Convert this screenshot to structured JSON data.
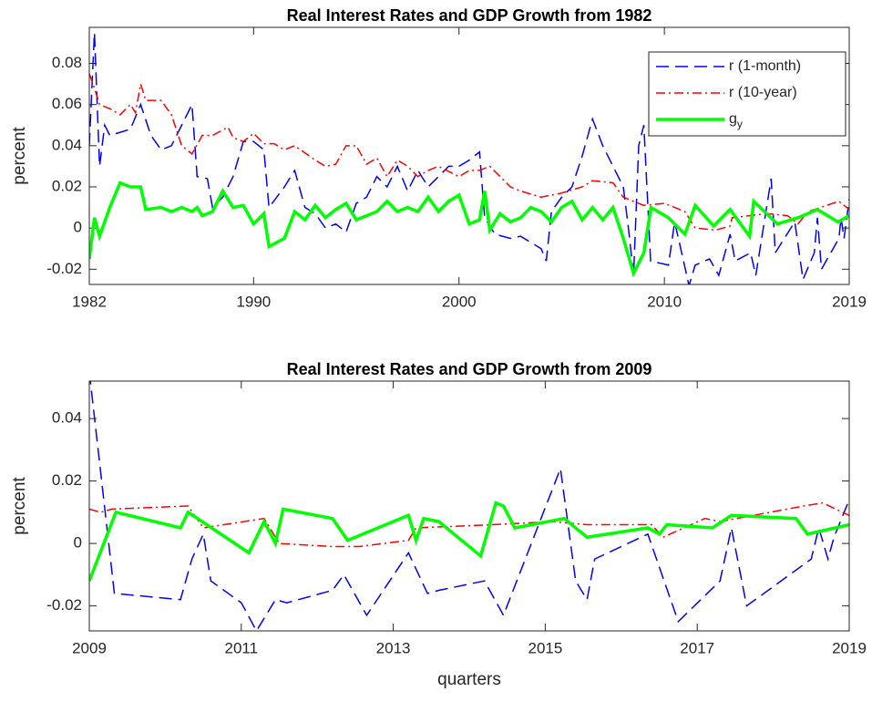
{
  "chart_data": [
    {
      "type": "line",
      "title": "Real Interest Rates and GDP Growth from 1982",
      "ylabel": "percent",
      "xlim": [
        1982,
        2019
      ],
      "xticks": [
        1982,
        1990,
        2000,
        2010,
        2019
      ],
      "ylim": [
        -0.0274,
        0.0975
      ],
      "yticks": [
        -0.02,
        0,
        0.02,
        0.04,
        0.06,
        0.08
      ],
      "legend": "northeast",
      "series": [
        {
          "name": "r (1-month)",
          "color": "#0000ff",
          "dash": "dashed",
          "x": [
            1982,
            1982.25,
            1982.5,
            1982.75,
            1983,
            1984,
            1984.5,
            1985,
            1985.5,
            1986,
            1986.5,
            1987,
            1987.25,
            1987.75,
            1988,
            1988.5,
            1989,
            1989.5,
            1990,
            1990.5,
            1990.75,
            1991.5,
            1992,
            1992.5,
            1993,
            1993.5,
            1994,
            1994.5,
            1995,
            1995.5,
            1996,
            1996.5,
            1997,
            1997.5,
            1998,
            1998.5,
            1999,
            1999.5,
            2000,
            2000.5,
            2001,
            2001.25,
            2001.75,
            2002.5,
            2003,
            2003.5,
            2004,
            2004.25,
            2004.5,
            2005,
            2005.5,
            2006,
            2006.5,
            2007,
            2007.5,
            2008,
            2008.25,
            2008.5,
            2008.75,
            2009,
            2009.33,
            2010.2,
            2010.5,
            2011,
            2011.2,
            2011.5,
            2012.2,
            2012.65,
            2013.2,
            2013.45,
            2014.2,
            2014.45,
            2015.2,
            2015.4,
            2016.35,
            2016.75,
            2017.3,
            2017.45,
            2017.65,
            2018.5,
            2018.6,
            2018.75,
            2019
          ],
          "values": [
            0.04,
            0.095,
            0.03,
            0.05,
            0.045,
            0.048,
            0.06,
            0.045,
            0.038,
            0.04,
            0.05,
            0.06,
            0.025,
            0.024,
            0.01,
            0.015,
            0.025,
            0.042,
            0.042,
            0.038,
            0.01,
            0.02,
            0.028,
            0.01,
            0.007,
            0,
            0.002,
            -0.002,
            0.012,
            0.015,
            0.025,
            0.02,
            0.03,
            0.018,
            0.028,
            0.02,
            0.025,
            0.03,
            0.03,
            0.033,
            0.037,
            0.005,
            -0.003,
            -0.005,
            -0.004,
            -0.007,
            -0.01,
            -0.016,
            0.008,
            0.015,
            0.02,
            0.035,
            0.053,
            0.04,
            0.03,
            0.02,
            0,
            -0.023,
            0.04,
            0.05,
            -0.016,
            -0.018,
            0.003,
            -0.019,
            -0.028,
            -0.018,
            -0.015,
            -0.023,
            -0.003,
            -0.016,
            -0.012,
            -0.023,
            0.024,
            -0.012,
            0.003,
            -0.025,
            -0.012,
            0.005,
            -0.02,
            -0.005,
            0.005,
            -0.005,
            0.014
          ]
        },
        {
          "name": "r (10-year)",
          "color": "#ff0000",
          "dash": "dashdot",
          "x": [
            1982,
            1982.25,
            1982.5,
            1983,
            1983.5,
            1984,
            1984.25,
            1984.5,
            1984.75,
            1985.5,
            1986,
            1986.5,
            1987,
            1987.5,
            1988,
            1988.75,
            1989,
            1989.5,
            1990,
            1990.5,
            1991,
            1991.5,
            1992,
            1993,
            1993.5,
            1994,
            1994.5,
            1995,
            1995.5,
            1996,
            1996.5,
            1997,
            1997.5,
            1998,
            1998.5,
            1999,
            2000,
            2000.5,
            2001,
            2001.5,
            2002,
            2002.5,
            2003,
            2004,
            2005,
            2006,
            2006.5,
            2007.5,
            2008,
            2009,
            2010,
            2011,
            2011.5,
            2012.5,
            2013.2,
            2013.3,
            2015,
            2016,
            2016.5,
            2017,
            2018.5,
            2019
          ],
          "values": [
            0.075,
            0.068,
            0.06,
            0.058,
            0.055,
            0.06,
            0.056,
            0.07,
            0.062,
            0.062,
            0.055,
            0.04,
            0.036,
            0.045,
            0.045,
            0.049,
            0.044,
            0.042,
            0.046,
            0.041,
            0.041,
            0.038,
            0.04,
            0.033,
            0.03,
            0.031,
            0.04,
            0.04,
            0.031,
            0.034,
            0.025,
            0.033,
            0.03,
            0.025,
            0.028,
            0.03,
            0.025,
            0.028,
            0.028,
            0.03,
            0.025,
            0.02,
            0.018,
            0.015,
            0.017,
            0.02,
            0.023,
            0.022,
            0.015,
            0.011,
            0.012,
            0.008,
            0,
            -0.001,
            0.001,
            0.005,
            0.007,
            0.006,
            0.002,
            0.008,
            0.013,
            0.009
          ]
        },
        {
          "name": "g_y",
          "color": "#00ff00",
          "dash": "solid",
          "x": [
            1982,
            1982.25,
            1982.5,
            1983,
            1983.5,
            1984,
            1984.5,
            1984.75,
            1985.5,
            1986,
            1986.5,
            1987,
            1987.25,
            1987.5,
            1988,
            1988.5,
            1989,
            1989.5,
            1990,
            1990.5,
            1990.75,
            1991.5,
            1992,
            1992.5,
            1993,
            1993.5,
            1994,
            1994.5,
            1995,
            1995.5,
            1996,
            1996.5,
            1997,
            1997.5,
            1998,
            1998.5,
            1999,
            1999.5,
            2000,
            2000.5,
            2001,
            2001.25,
            2001.5,
            2002,
            2002.5,
            2003,
            2003.5,
            2004,
            2004.5,
            2005,
            2005.5,
            2006,
            2006.5,
            2007,
            2007.5,
            2008,
            2008.5,
            2009,
            2009.35,
            2010.2,
            2011,
            2011.5,
            2012.4,
            2013.2,
            2014.15,
            2014.35,
            2015.5,
            2016.5,
            2017.45,
            2018.45,
            2019
          ],
          "values": [
            -0.015,
            0.005,
            -0.004,
            0.01,
            0.022,
            0.02,
            0.02,
            0.009,
            0.01,
            0.008,
            0.01,
            0.008,
            0.01,
            0.006,
            0.008,
            0.018,
            0.01,
            0.011,
            0.002,
            0.007,
            -0.009,
            -0.005,
            0.008,
            0.004,
            0.011,
            0.005,
            0.009,
            0.012,
            0.004,
            0.006,
            0.008,
            0.013,
            0.008,
            0.01,
            0.008,
            0.015,
            0.008,
            0.013,
            0.016,
            0.002,
            0.004,
            0.018,
            -0.001,
            0.007,
            0.003,
            0.005,
            0.01,
            0.008,
            0.003,
            0.01,
            0.013,
            0.004,
            0.01,
            0.004,
            0.01,
            -0.005,
            -0.022,
            -0.012,
            0.01,
            0.005,
            -0.003,
            0.011,
            0.001,
            0.009,
            -0.004,
            0.013,
            0.002,
            0.005,
            0.009,
            0.003,
            0.006
          ]
        }
      ]
    },
    {
      "type": "line",
      "title": "Real Interest Rates and GDP Growth from 2009",
      "ylabel": "percent",
      "xlabel": "quarters",
      "xlim": [
        2009,
        2019
      ],
      "xticks": [
        2009,
        2011,
        2013,
        2015,
        2017,
        2019
      ],
      "ylim": [
        -0.028,
        0.052
      ],
      "yticks": [
        -0.02,
        0,
        0.02,
        0.04
      ],
      "series": [
        {
          "name": "r (1-month)",
          "color": "#0000ff",
          "dash": "dashed",
          "x": [
            2009,
            2009.33,
            2010.2,
            2010.35,
            2010.5,
            2010.6,
            2011,
            2011.2,
            2011.45,
            2011.6,
            2012.2,
            2012.35,
            2012.65,
            2013.2,
            2013.45,
            2013.6,
            2014.2,
            2014.45,
            2015.2,
            2015.4,
            2015.55,
            2015.65,
            2016.35,
            2016.75,
            2017.3,
            2017.45,
            2017.65,
            2018.5,
            2018.6,
            2018.72,
            2018.8,
            2019
          ],
          "values": [
            0.055,
            -0.016,
            -0.018,
            -0.005,
            0.003,
            -0.012,
            -0.019,
            -0.028,
            -0.018,
            -0.019,
            -0.015,
            -0.01,
            -0.023,
            -0.003,
            -0.016,
            -0.015,
            -0.012,
            -0.023,
            0.024,
            -0.012,
            -0.018,
            -0.005,
            0.003,
            -0.025,
            -0.012,
            0.005,
            -0.02,
            -0.005,
            0.005,
            -0.005,
            0.002,
            0.014
          ]
        },
        {
          "name": "r (10-year)",
          "color": "#ff0000",
          "dash": "dashdot",
          "x": [
            2009,
            2009.15,
            2009.3,
            2010.3,
            2010.5,
            2011.3,
            2011.5,
            2012.2,
            2012.55,
            2013.2,
            2013.3,
            2014.3,
            2015.1,
            2015.55,
            2016.4,
            2016.55,
            2017.1,
            2017.3,
            2018.4,
            2018.65,
            2019
          ],
          "values": [
            0.011,
            0.01,
            0.011,
            0.012,
            0.005,
            0.008,
            0,
            -0.001,
            -0.001,
            0.001,
            0.005,
            0.006,
            0.007,
            0.006,
            0.006,
            0.002,
            0.008,
            0.007,
            0.012,
            0.013,
            0.009
          ]
        },
        {
          "name": "g_y",
          "color": "#00ff00",
          "dash": "solid",
          "x": [
            2009,
            2009.35,
            2010.2,
            2010.3,
            2011.1,
            2011.3,
            2011.45,
            2011.55,
            2012.2,
            2012.4,
            2013.2,
            2013.3,
            2013.4,
            2013.6,
            2014.15,
            2014.35,
            2014.45,
            2014.6,
            2015.25,
            2015.55,
            2016.35,
            2016.5,
            2016.6,
            2017.2,
            2017.45,
            2018.3,
            2018.45,
            2019
          ],
          "values": [
            -0.012,
            0.01,
            0.005,
            0.01,
            -0.003,
            0.007,
            0,
            0.011,
            0.008,
            0.001,
            0.009,
            0.001,
            0.008,
            0.007,
            -0.004,
            0.013,
            0.012,
            0.005,
            0.008,
            0.002,
            0.005,
            0.003,
            0.006,
            0.005,
            0.009,
            0.008,
            0.003,
            0.006
          ]
        }
      ]
    }
  ]
}
